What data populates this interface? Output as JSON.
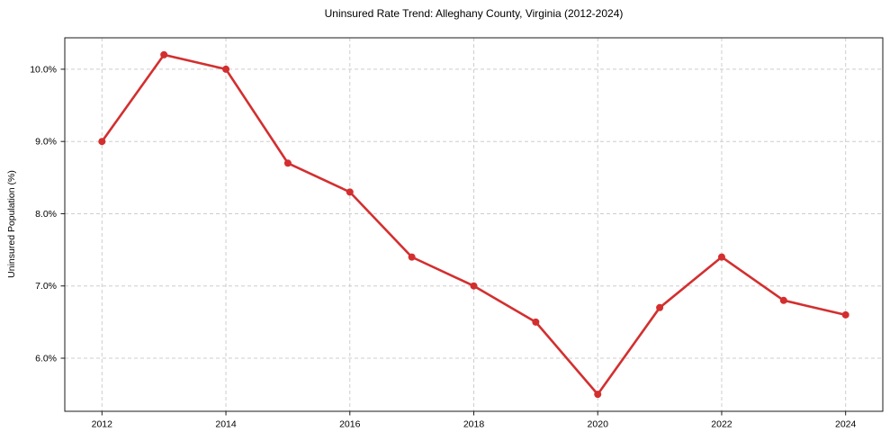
{
  "chart_data": {
    "type": "line",
    "title": "Uninsured Rate Trend: Alleghany County, Virginia (2012-2024)",
    "xlabel": "",
    "ylabel": "Uninsured Population (%)",
    "x": [
      2012,
      2013,
      2014,
      2015,
      2016,
      2017,
      2018,
      2019,
      2020,
      2021,
      2022,
      2023,
      2024
    ],
    "values": [
      9.0,
      10.2,
      10.0,
      8.7,
      8.3,
      7.4,
      7.0,
      6.5,
      5.5,
      6.7,
      7.4,
      6.8,
      6.6
    ],
    "xlim": [
      2011.4,
      2024.6
    ],
    "ylim": [
      5.265,
      10.435
    ],
    "x_ticks": [
      2012,
      2014,
      2016,
      2018,
      2020,
      2022,
      2024
    ],
    "x_tick_labels": [
      "2012",
      "2014",
      "2016",
      "2018",
      "2020",
      "2022",
      "2024"
    ],
    "y_ticks": [
      6.0,
      7.0,
      8.0,
      9.0,
      10.0
    ],
    "y_tick_labels": [
      "6.0%",
      "7.0%",
      "8.0%",
      "9.0%",
      "10.0%"
    ],
    "grid": true,
    "legend": false,
    "line_color": "#d32f2f",
    "marker": "circle",
    "marker_radius": 4
  }
}
